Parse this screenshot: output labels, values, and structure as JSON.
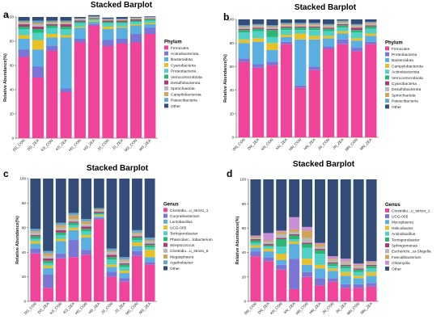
{
  "chart_data": [
    {
      "type": "bar",
      "panel": "a",
      "title": "Stacked Barplot",
      "ylabel": "Relative Abundance(%)",
      "ylim": [
        0,
        100
      ],
      "yticks": [
        0,
        20,
        40,
        60,
        80,
        100
      ],
      "legend_title": "Phylum",
      "legend_position": "right",
      "categories": [
        "DS_CON",
        "DS_ZEA",
        "KS_CON",
        "KS_ZEA",
        "HS_CON",
        "HS_ZEA",
        "JS_CON",
        "JS_ZEA",
        "MS_CON",
        "MS_ZEA"
      ],
      "series": [
        {
          "name": "Firmicutes",
          "color": "#f0449b",
          "values": [
            67,
            50,
            72,
            38,
            79,
            93,
            76,
            78,
            79,
            86
          ]
        },
        {
          "name": "Actinobacteriota",
          "color": "#7b76d6",
          "values": [
            6,
            9,
            4,
            3,
            3,
            1,
            5,
            4,
            7,
            5
          ]
        },
        {
          "name": "Bacteroidota",
          "color": "#5aaee0",
          "values": [
            9,
            14,
            7,
            42,
            9,
            2,
            9,
            9,
            7,
            3
          ]
        },
        {
          "name": "Cyanobacteria",
          "color": "#e8c02a",
          "values": [
            3,
            8,
            3,
            2,
            1,
            1,
            2,
            1,
            1,
            1
          ]
        },
        {
          "name": "Proteobacteria",
          "color": "#4fd1c5",
          "values": [
            5,
            6,
            5,
            5,
            3,
            1,
            3,
            3,
            2,
            2
          ]
        },
        {
          "name": "Verrucomicrobiota",
          "color": "#2bb673",
          "values": [
            2,
            3,
            2,
            2,
            1,
            0.5,
            1,
            1,
            1,
            1
          ]
        },
        {
          "name": "Desulfobacterota",
          "color": "#a63d74",
          "values": [
            2,
            2,
            1,
            2,
            1,
            0.5,
            1,
            1,
            1,
            0.5
          ]
        },
        {
          "name": "Spirochaetota",
          "color": "#b8b8b8",
          "values": [
            1,
            2,
            1,
            1,
            1,
            0.5,
            0.5,
            0.5,
            0.5,
            0.5
          ]
        },
        {
          "name": "Campilobacterota",
          "color": "#d3a35c",
          "values": [
            1,
            1,
            1,
            1,
            0.5,
            0.5,
            0.5,
            0.5,
            0.5,
            0.5
          ]
        },
        {
          "name": "Patescibacteria",
          "color": "#68a7c9",
          "values": [
            1,
            2,
            1,
            1,
            0.5,
            0.5,
            0.5,
            0.5,
            0.5,
            0.5
          ]
        },
        {
          "name": "Other",
          "color": "#334d7a",
          "values": [
            3,
            3,
            3,
            3,
            1,
            1,
            1,
            1.5,
            0.5,
            0.5
          ]
        }
      ]
    },
    {
      "type": "bar",
      "panel": "b",
      "title": "Stacked Barplot",
      "ylabel": "Relative Abundance(%)",
      "ylim": [
        0,
        100
      ],
      "yticks": [
        0,
        20,
        40,
        60,
        80,
        100
      ],
      "legend_title": "Phylum",
      "legend_position": "right",
      "categories": [
        "DN_CON",
        "DN_ZEA",
        "KN_CON",
        "KN_ZEA",
        "HN_CON",
        "HN_ZEA",
        "JN_CON",
        "JN_ZEA",
        "MN_CON",
        "MN_ZEA"
      ],
      "series": [
        {
          "name": "Firmicutes",
          "color": "#f0449b",
          "values": [
            64,
            59,
            61,
            79,
            42,
            57,
            75,
            79,
            73,
            79
          ]
        },
        {
          "name": "Proteobacteria",
          "color": "#7b76d6",
          "values": [
            3,
            3,
            3,
            2,
            2,
            3,
            2,
            4,
            3,
            2
          ]
        },
        {
          "name": "Bacteroidota",
          "color": "#5aaee0",
          "values": [
            13,
            19,
            10,
            4,
            39,
            23,
            7,
            5,
            6,
            5
          ]
        },
        {
          "name": "Campylobacterota",
          "color": "#e8c02a",
          "values": [
            3,
            3,
            6,
            2,
            5,
            3,
            2,
            2,
            2,
            2
          ]
        },
        {
          "name": "Actinobacteriota",
          "color": "#4fd1c5",
          "values": [
            6,
            6,
            5,
            4,
            3,
            5,
            4,
            3,
            5,
            4
          ]
        },
        {
          "name": "Verrucomicrobiota",
          "color": "#2bb673",
          "values": [
            2,
            2,
            6,
            2,
            2,
            2,
            2,
            2,
            2,
            2
          ]
        },
        {
          "name": "Cyanobacteria",
          "color": "#a63d74",
          "values": [
            1,
            1,
            1,
            1,
            1,
            1,
            1,
            1,
            2,
            1
          ]
        },
        {
          "name": "Desulfobacterota",
          "color": "#b8b8b8",
          "values": [
            1,
            1,
            1,
            1,
            1,
            1,
            1,
            1,
            1,
            1
          ]
        },
        {
          "name": "Spirochaetota",
          "color": "#d3a35c",
          "values": [
            1,
            1,
            1,
            1,
            1,
            1,
            1,
            1,
            1,
            1
          ]
        },
        {
          "name": "Patescibacteria",
          "color": "#68a7c9",
          "values": [
            1,
            1,
            1,
            1,
            1,
            1,
            1,
            1,
            1,
            1
          ]
        },
        {
          "name": "Other",
          "color": "#334d7a",
          "values": [
            5,
            4,
            5,
            3,
            3,
            3,
            4,
            1,
            4,
            2
          ]
        }
      ]
    },
    {
      "type": "bar",
      "panel": "c",
      "title": "Stacked Barplot",
      "ylabel": "Relative Abundance(%)",
      "ylim": [
        0,
        100
      ],
      "yticks": [
        0,
        20,
        40,
        60,
        80,
        100
      ],
      "legend_title": "Genus",
      "legend_position": "right",
      "categories": [
        "DS_CON",
        "DS_ZEA",
        "KS_CON",
        "KS_ZEA",
        "HS_CON",
        "HS_ZEA",
        "JS_CON",
        "JS_ZEA",
        "MS_CON",
        "MS_ZEA"
      ],
      "series": [
        {
          "name": "Clostridiu...u_stricto_1",
          "color": "#f0449b",
          "values": [
            39,
            11,
            35,
            36,
            38,
            67,
            20,
            16,
            37,
            30
          ]
        },
        {
          "name": "Corynebacterium",
          "color": "#7b76d6",
          "values": [
            4,
            11,
            4,
            14,
            4,
            1,
            4,
            3,
            4,
            2
          ]
        },
        {
          "name": "Lactobacillus",
          "color": "#5aaee0",
          "values": [
            4,
            5,
            10,
            8,
            10,
            1,
            4,
            4,
            4,
            4
          ]
        },
        {
          "name": "UCG-005",
          "color": "#e8c02a",
          "values": [
            2,
            2,
            2,
            2,
            2,
            1,
            2,
            2,
            3,
            6
          ]
        },
        {
          "name": "Terrisporobacter",
          "color": "#4fd1c5",
          "values": [
            2,
            2,
            3,
            2,
            3,
            1,
            4,
            3,
            2,
            2
          ]
        },
        {
          "name": "Phascolarc...tobacterium",
          "color": "#2bb673",
          "values": [
            2,
            2,
            2,
            2,
            2,
            1,
            2,
            2,
            2,
            2
          ]
        },
        {
          "name": "Streptococcus",
          "color": "#a63d74",
          "values": [
            1,
            2,
            2,
            1,
            2,
            1,
            2,
            1,
            1,
            1
          ]
        },
        {
          "name": "Clostridiu...u_stricto_6",
          "color": "#b8b8b8",
          "values": [
            2,
            2,
            2,
            2,
            2,
            1,
            2,
            2,
            2,
            2
          ]
        },
        {
          "name": "Megasphaera",
          "color": "#d3a35c",
          "values": [
            1,
            2,
            2,
            3,
            2,
            1,
            1,
            1,
            1,
            1
          ]
        },
        {
          "name": "Agathobacter",
          "color": "#68a7c9",
          "values": [
            2,
            2,
            2,
            2,
            2,
            1,
            2,
            2,
            2,
            2
          ]
        },
        {
          "name": "Other",
          "color": "#334d7a",
          "values": [
            41,
            59,
            36,
            28,
            33,
            24,
            57,
            64,
            42,
            48
          ]
        }
      ]
    },
    {
      "type": "bar",
      "panel": "d",
      "title": "Stacked Barplot",
      "ylabel": "Relative Abundance(%)",
      "ylim": [
        0,
        100
      ],
      "yticks": [
        0,
        20,
        40,
        60,
        80,
        100
      ],
      "legend_title": "Genus",
      "legend_position": "right",
      "categories": [
        "DN_CON",
        "DN_ZEA",
        "KN_CON",
        "KN_ZEA",
        "HN_CON",
        "HN_ZEA",
        "JN_CON",
        "JN_ZEA",
        "MN_CON",
        "MN_ZEA"
      ],
      "series": [
        {
          "name": "Clostridiu...u_stricto_1",
          "color": "#f0449b",
          "values": [
            37,
            33,
            26,
            10,
            20,
            13,
            16,
            11,
            11,
            12
          ]
        },
        {
          "name": "UCG-005",
          "color": "#7b76d6",
          "values": [
            4,
            3,
            4,
            25,
            4,
            6,
            3,
            3,
            3,
            3
          ]
        },
        {
          "name": "Mycoplasma",
          "color": "#5aaee0",
          "values": [
            3,
            5,
            4,
            12,
            6,
            8,
            6,
            7,
            5,
            6
          ]
        },
        {
          "name": "Helicobacter",
          "color": "#e8c02a",
          "values": [
            2,
            2,
            5,
            2,
            5,
            3,
            2,
            3,
            2,
            3
          ]
        },
        {
          "name": "Actinobacillus",
          "color": "#4fd1c5",
          "values": [
            2,
            2,
            6,
            2,
            9,
            9,
            2,
            3,
            3,
            3
          ]
        },
        {
          "name": "Terrisporobacter",
          "color": "#2bb673",
          "values": [
            2,
            1,
            6,
            3,
            3,
            3,
            2,
            2,
            2,
            2
          ]
        },
        {
          "name": "Sphingomonas",
          "color": "#a63d74",
          "values": [
            1,
            1,
            1,
            1,
            1,
            1,
            1,
            1,
            1,
            1
          ]
        },
        {
          "name": "Escherichi...ia-Shigella",
          "color": "#b8b8b8",
          "values": [
            1,
            2,
            3,
            2,
            4,
            2,
            2,
            2,
            2,
            1
          ]
        },
        {
          "name": "Faecalibacterium",
          "color": "#d3a35c",
          "values": [
            1,
            1,
            2,
            2,
            6,
            2,
            1,
            1,
            1,
            1
          ]
        },
        {
          "name": "Chlamydia",
          "color": "#c98fd6",
          "values": [
            1,
            6,
            1,
            10,
            3,
            1,
            2,
            2,
            1,
            1
          ]
        },
        {
          "name": "Other",
          "color": "#334d7a",
          "values": [
            46,
            44,
            42,
            31,
            39,
            52,
            63,
            65,
            69,
            67
          ]
        }
      ]
    }
  ]
}
